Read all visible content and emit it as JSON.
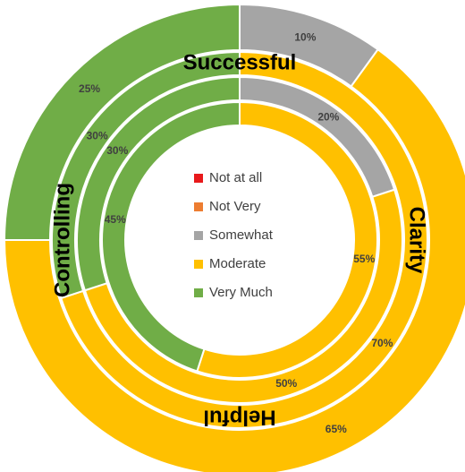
{
  "chart_data": {
    "type": "donut",
    "categories": [
      "Not at all",
      "Not Very",
      "Somewhat",
      "Moderate",
      "Very Much"
    ],
    "colors": [
      "#e8191b",
      "#ed7d31",
      "#a5a5a5",
      "#ffc000",
      "#70ad47"
    ],
    "series": [
      {
        "name": "Successful",
        "values": [
          0,
          0,
          10,
          65,
          25
        ],
        "value_labels": [
          null,
          null,
          "10%",
          "65%",
          "25%"
        ]
      },
      {
        "name": "Clarity",
        "values": [
          0,
          0,
          0,
          70,
          30
        ],
        "value_labels": [
          null,
          null,
          null,
          "70%",
          "30%"
        ]
      },
      {
        "name": "Helpful",
        "values": [
          0,
          0,
          20,
          50,
          30
        ],
        "value_labels": [
          null,
          null,
          "20%",
          "50%",
          "30%"
        ]
      },
      {
        "name": "Controlling",
        "values": [
          0,
          0,
          0,
          55,
          45
        ],
        "value_labels": [
          null,
          null,
          null,
          "55%",
          "45%"
        ]
      }
    ],
    "legend": "center"
  }
}
